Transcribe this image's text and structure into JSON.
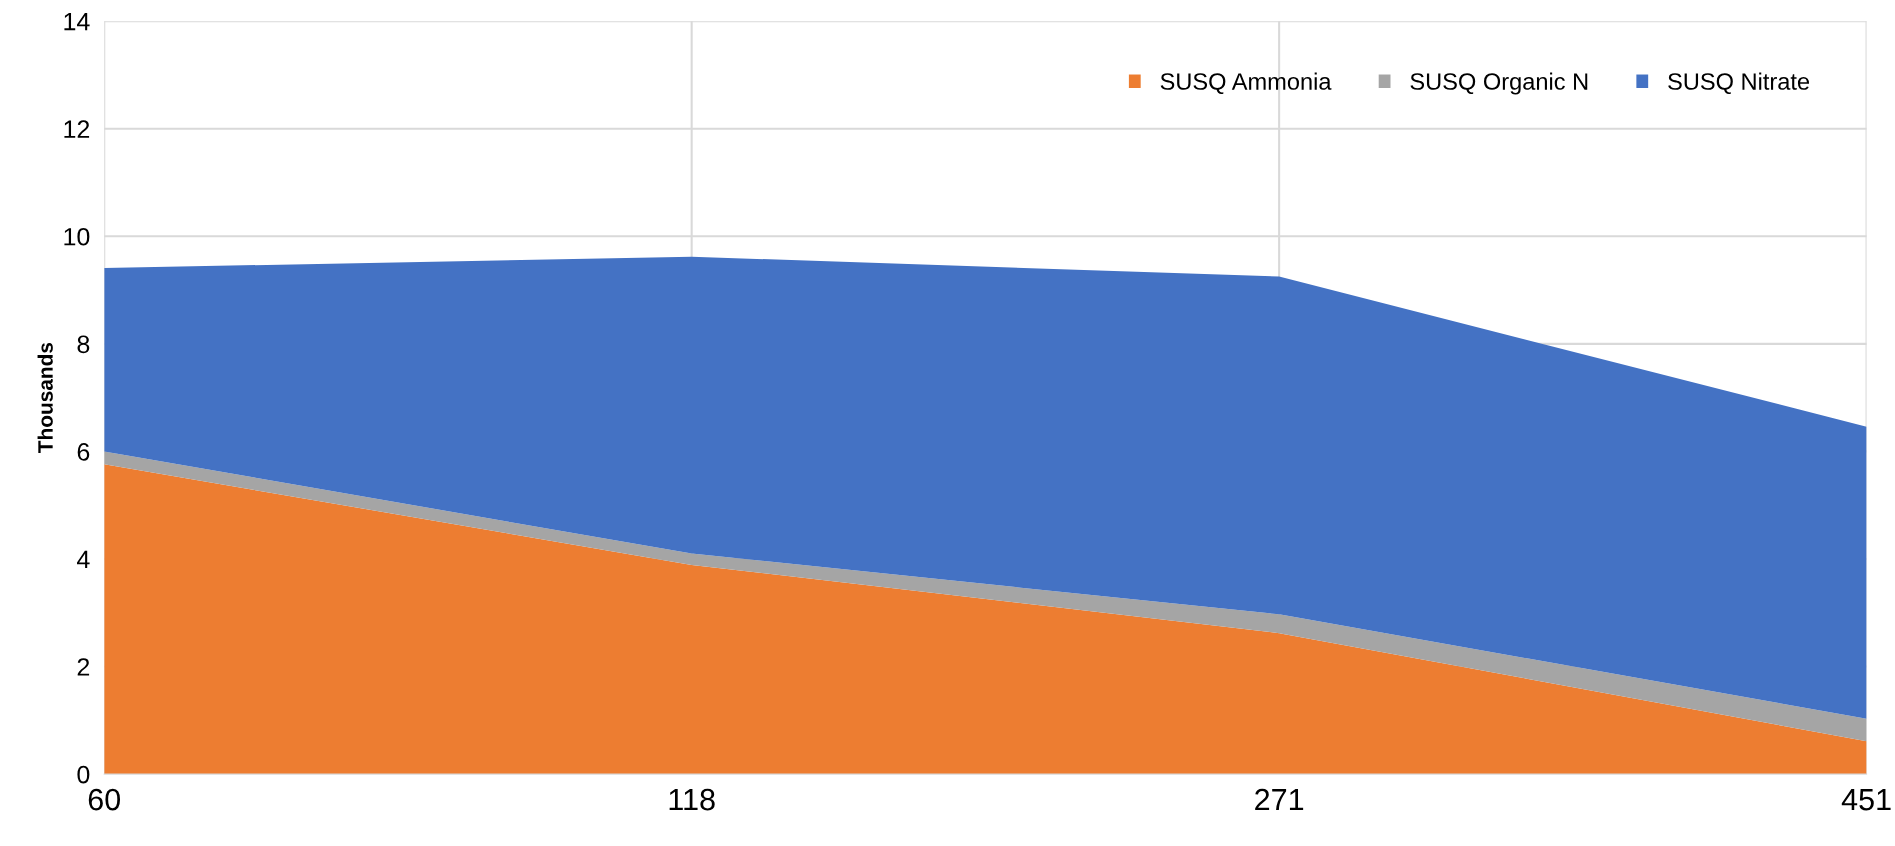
{
  "chart_data": {
    "type": "area",
    "stacked": true,
    "ylabel": "Thousands",
    "categories": [
      "60",
      "118",
      "271",
      "451"
    ],
    "series": [
      {
        "name": "SUSQ Ammonia",
        "color": "#ed7d31",
        "values": [
          5.76,
          3.89,
          2.62,
          0.61
        ]
      },
      {
        "name": "SUSQ Organic N",
        "color": "#a5a5a5",
        "values": [
          0.24,
          0.21,
          0.35,
          0.42
        ]
      },
      {
        "name": "SUSQ Nitrate",
        "color": "#4472c4",
        "values": [
          3.41,
          5.52,
          6.28,
          5.43
        ]
      }
    ],
    "ylim": [
      0,
      14
    ],
    "yticks": [
      0,
      2,
      4,
      6,
      8,
      10,
      12,
      14
    ],
    "grid": true,
    "legend": "top right"
  }
}
